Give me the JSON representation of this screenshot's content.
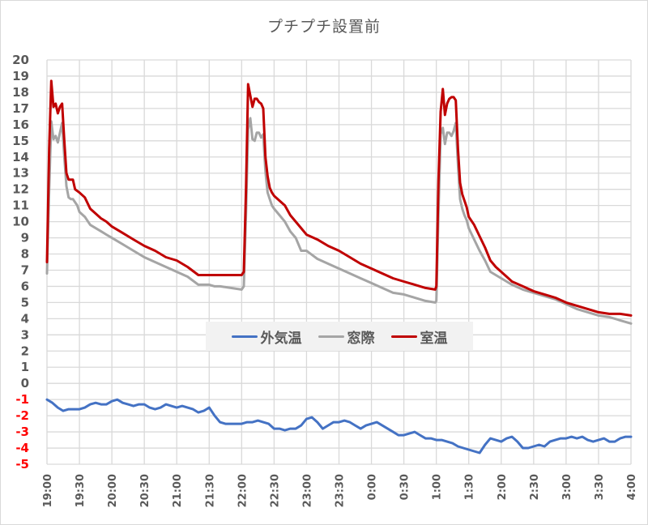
{
  "chart_data": {
    "type": "line",
    "title": "プチプチ設置前",
    "xlabel": "",
    "ylabel": "",
    "ylim": [
      -5,
      20
    ],
    "y_ticks": [
      20,
      19,
      18,
      17,
      16,
      15,
      14,
      13,
      12,
      11,
      10,
      9,
      8,
      7,
      6,
      5,
      4,
      3,
      2,
      1,
      0,
      -1,
      -2,
      -3,
      -4,
      -5
    ],
    "negative_tick_color": "#ff0000",
    "x_tick_labels": [
      "19:00",
      "19:30",
      "20:00",
      "20:30",
      "21:00",
      "21:30",
      "22:00",
      "22:30",
      "23:00",
      "23:30",
      "0:00",
      "0:30",
      "1:00",
      "1:30",
      "2:00",
      "2:30",
      "3:00",
      "3:30",
      "4:00"
    ],
    "x_range_minutes": [
      0,
      540
    ],
    "grid": true,
    "legend_position": "center-overlay",
    "series": [
      {
        "name": "外気温",
        "color": "#4472c4",
        "x_minutes": [
          0,
          5,
          10,
          15,
          20,
          25,
          30,
          35,
          40,
          45,
          50,
          55,
          60,
          65,
          70,
          75,
          80,
          85,
          90,
          95,
          100,
          105,
          110,
          115,
          120,
          125,
          130,
          135,
          140,
          145,
          150,
          155,
          160,
          165,
          170,
          175,
          180,
          185,
          190,
          195,
          200,
          205,
          210,
          215,
          220,
          225,
          230,
          235,
          240,
          245,
          250,
          255,
          260,
          265,
          270,
          275,
          280,
          285,
          290,
          295,
          300,
          305,
          310,
          315,
          320,
          325,
          330,
          335,
          340,
          345,
          350,
          355,
          360,
          365,
          370,
          375,
          380,
          385,
          390,
          395,
          400,
          405,
          410,
          415,
          420,
          425,
          430,
          435,
          440,
          445,
          450,
          455,
          460,
          465,
          470,
          475,
          480,
          485,
          490,
          495,
          500,
          505,
          510,
          515,
          520,
          525,
          530,
          535,
          540
        ],
        "values": [
          -1.0,
          -1.2,
          -1.5,
          -1.7,
          -1.6,
          -1.6,
          -1.6,
          -1.5,
          -1.3,
          -1.2,
          -1.3,
          -1.3,
          -1.1,
          -1.0,
          -1.2,
          -1.3,
          -1.4,
          -1.3,
          -1.3,
          -1.5,
          -1.6,
          -1.5,
          -1.3,
          -1.4,
          -1.5,
          -1.4,
          -1.5,
          -1.6,
          -1.8,
          -1.7,
          -1.5,
          -2.0,
          -2.4,
          -2.5,
          -2.5,
          -2.5,
          -2.5,
          -2.4,
          -2.4,
          -2.3,
          -2.4,
          -2.5,
          -2.8,
          -2.8,
          -2.9,
          -2.8,
          -2.8,
          -2.6,
          -2.2,
          -2.1,
          -2.4,
          -2.8,
          -2.6,
          -2.4,
          -2.4,
          -2.3,
          -2.4,
          -2.6,
          -2.8,
          -2.6,
          -2.5,
          -2.4,
          -2.6,
          -2.8,
          -3.0,
          -3.2,
          -3.2,
          -3.1,
          -3.0,
          -3.2,
          -3.4,
          -3.4,
          -3.5,
          -3.5,
          -3.6,
          -3.7,
          -3.9,
          -4.0,
          -4.1,
          -4.2,
          -4.3,
          -3.8,
          -3.4,
          -3.5,
          -3.6,
          -3.4,
          -3.3,
          -3.6,
          -4.0,
          -4.0,
          -3.9,
          -3.8,
          -3.9,
          -3.6,
          -3.5,
          -3.4,
          -3.4,
          -3.3,
          -3.4,
          -3.3,
          -3.5,
          -3.6,
          -3.5,
          -3.4,
          -3.6,
          -3.6,
          -3.4,
          -3.3,
          -3.3
        ],
        "line_width": 3
      },
      {
        "name": "窓際",
        "color": "#a5a5a5",
        "x_minutes": [
          0,
          2,
          4,
          6,
          8,
          10,
          12,
          14,
          16,
          18,
          20,
          22,
          24,
          26,
          28,
          30,
          35,
          40,
          45,
          50,
          55,
          60,
          70,
          80,
          90,
          100,
          110,
          120,
          130,
          140,
          150,
          155,
          160,
          170,
          180,
          182,
          184,
          186,
          188,
          190,
          192,
          194,
          196,
          198,
          200,
          202,
          204,
          206,
          208,
          210,
          215,
          220,
          225,
          230,
          235,
          240,
          250,
          260,
          270,
          280,
          290,
          300,
          310,
          320,
          330,
          340,
          350,
          359,
          360,
          362,
          364,
          366,
          368,
          370,
          372,
          374,
          376,
          378,
          380,
          382,
          384,
          386,
          388,
          390,
          395,
          400,
          405,
          410,
          415,
          420,
          425,
          430,
          440,
          450,
          460,
          470,
          480,
          490,
          500,
          510,
          520,
          530,
          540
        ],
        "values": [
          6.8,
          12.0,
          16.2,
          15.1,
          15.3,
          14.9,
          15.5,
          16.1,
          14.0,
          12.2,
          11.5,
          11.4,
          11.4,
          11.2,
          11.0,
          10.6,
          10.3,
          9.8,
          9.6,
          9.4,
          9.2,
          9.0,
          8.6,
          8.2,
          7.8,
          7.5,
          7.2,
          6.9,
          6.6,
          6.1,
          6.1,
          6.0,
          6.0,
          5.9,
          5.8,
          6.0,
          10.5,
          15.7,
          16.4,
          15.1,
          15.0,
          15.5,
          15.5,
          15.2,
          15.4,
          13.1,
          11.8,
          11.4,
          11.0,
          10.8,
          10.4,
          10.0,
          9.4,
          9.0,
          8.2,
          8.2,
          7.7,
          7.4,
          7.1,
          6.8,
          6.5,
          6.2,
          5.9,
          5.6,
          5.5,
          5.3,
          5.1,
          5.0,
          5.1,
          10.5,
          15.4,
          15.8,
          14.8,
          15.5,
          15.5,
          15.3,
          15.6,
          16.1,
          13.5,
          11.4,
          10.8,
          10.4,
          10.1,
          9.6,
          8.9,
          8.2,
          7.6,
          6.9,
          6.7,
          6.5,
          6.3,
          6.1,
          5.8,
          5.6,
          5.4,
          5.2,
          4.9,
          4.6,
          4.4,
          4.2,
          4.1,
          3.9,
          3.7
        ],
        "line_width": 3
      },
      {
        "name": "室温",
        "color": "#c00000",
        "x_minutes": [
          0,
          2,
          4,
          6,
          8,
          10,
          12,
          14,
          16,
          18,
          20,
          22,
          24,
          26,
          28,
          30,
          35,
          40,
          45,
          50,
          55,
          60,
          70,
          80,
          90,
          100,
          110,
          120,
          130,
          140,
          150,
          155,
          160,
          170,
          180,
          182,
          184,
          186,
          188,
          190,
          192,
          194,
          196,
          198,
          200,
          202,
          204,
          206,
          208,
          210,
          215,
          220,
          225,
          230,
          235,
          240,
          250,
          260,
          270,
          280,
          290,
          300,
          310,
          320,
          330,
          340,
          350,
          359,
          360,
          362,
          364,
          366,
          368,
          370,
          372,
          374,
          376,
          378,
          380,
          382,
          384,
          386,
          388,
          390,
          395,
          400,
          405,
          410,
          415,
          420,
          425,
          430,
          440,
          450,
          460,
          470,
          480,
          490,
          500,
          510,
          520,
          530,
          540
        ],
        "values": [
          7.5,
          14.5,
          18.7,
          17.1,
          17.3,
          16.7,
          17.1,
          17.3,
          15.0,
          13.0,
          12.6,
          12.6,
          12.6,
          12.0,
          11.9,
          11.8,
          11.5,
          10.8,
          10.5,
          10.2,
          10.0,
          9.7,
          9.3,
          8.9,
          8.5,
          8.2,
          7.8,
          7.6,
          7.2,
          6.7,
          6.7,
          6.7,
          6.7,
          6.7,
          6.7,
          6.9,
          12.0,
          18.5,
          17.8,
          17.1,
          17.6,
          17.6,
          17.4,
          17.3,
          17.0,
          14.0,
          12.8,
          12.1,
          11.8,
          11.6,
          11.3,
          11.0,
          10.4,
          10.0,
          9.6,
          9.2,
          8.9,
          8.5,
          8.2,
          7.8,
          7.4,
          7.1,
          6.8,
          6.5,
          6.3,
          6.1,
          5.9,
          5.8,
          6.0,
          12.5,
          16.8,
          18.2,
          16.6,
          17.3,
          17.6,
          17.7,
          17.7,
          17.5,
          14.5,
          12.4,
          11.7,
          11.3,
          10.9,
          10.3,
          9.8,
          9.1,
          8.4,
          7.6,
          7.2,
          6.9,
          6.6,
          6.3,
          6.0,
          5.7,
          5.5,
          5.3,
          5.0,
          4.8,
          4.6,
          4.4,
          4.3,
          4.3,
          4.2
        ],
        "line_width": 3
      }
    ]
  },
  "legend": {
    "items": [
      {
        "label": "外気温",
        "color": "#4472c4"
      },
      {
        "label": "窓際",
        "color": "#a5a5a5"
      },
      {
        "label": "室温",
        "color": "#c00000"
      }
    ]
  }
}
